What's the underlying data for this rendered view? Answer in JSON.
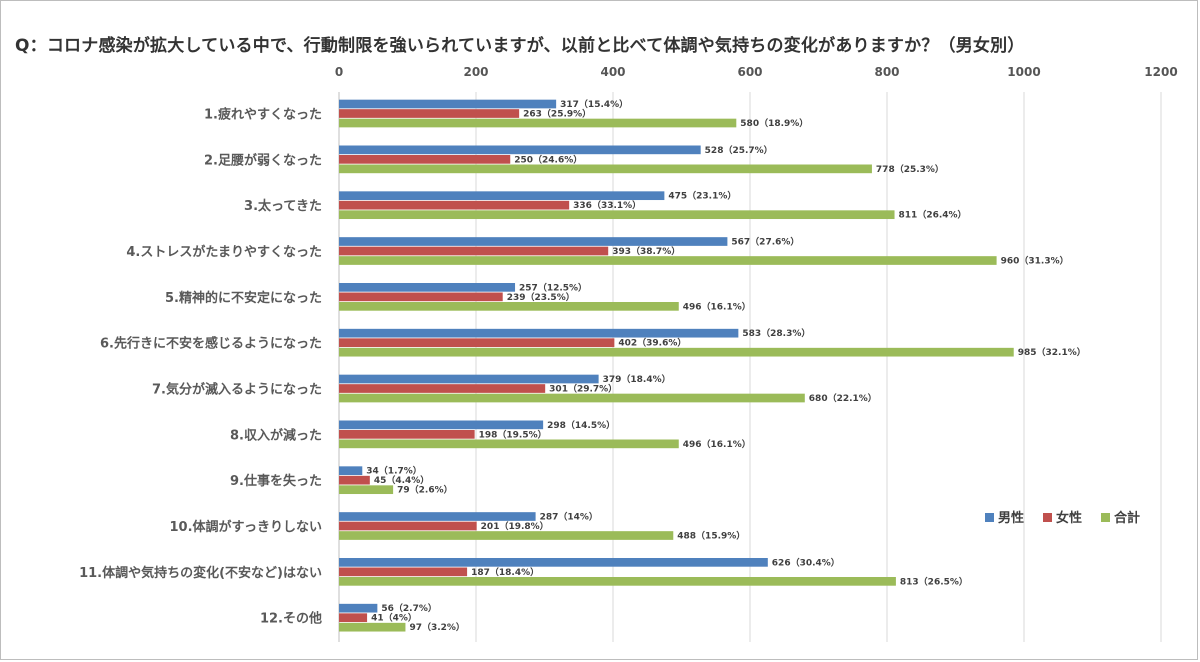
{
  "chart_data": {
    "type": "bar",
    "orientation": "horizontal",
    "title": "Q：コロナ感染が拡大している中で、行動制限を強いられていますが、以前と比べて体調や気持ちの変化がありますか？（男女別）",
    "xlim": [
      0,
      1200
    ],
    "x_ticks": [
      "0",
      "200",
      "400",
      "600",
      "800",
      "1000",
      "1200"
    ],
    "x_tick_values": [
      0,
      200,
      400,
      600,
      800,
      1000,
      1200
    ],
    "grid": true,
    "legend_position": "right",
    "categories": [
      "1.疲れやすくなった",
      "2.足腰が弱くなった",
      "3.太ってきた",
      "4.ストレスがたまりやすくなった",
      "5.精神的に不安定になった",
      "6.先行きに不安を感じるようになった",
      "7.気分が滅入るようになった",
      "8.収入が減った",
      "9.仕事を失った",
      "10.体調がすっきりしない",
      "11.体調や気持ちの変化(不安など)はない",
      "12.その他"
    ],
    "series": [
      {
        "name": "男性",
        "color": "#4f81bd",
        "values": [
          317,
          528,
          475,
          567,
          257,
          583,
          379,
          298,
          34,
          287,
          626,
          56
        ],
        "labels": [
          "317（15.4%）",
          "528（25.7%）",
          "475（23.1%）",
          "567（27.6%）",
          "257（12.5%）",
          "583（28.3%）",
          "379（18.4%）",
          "298（14.5%）",
          "34（1.7%）",
          "287（14%）",
          "626（30.4%）",
          "56（2.7%）"
        ]
      },
      {
        "name": "女性",
        "color": "#c0504d",
        "values": [
          263,
          250,
          336,
          393,
          239,
          402,
          301,
          198,
          45,
          201,
          187,
          41
        ],
        "labels": [
          "263（25.9%）",
          "250（24.6%）",
          "336（33.1%）",
          "393（38.7%）",
          "239（23.5%）",
          "402（39.6%）",
          "301（29.7%）",
          "198（19.5%）",
          "45（4.4%）",
          "201（19.8%）",
          "187（18.4%）",
          "41（4%）"
        ]
      },
      {
        "name": "合計",
        "color": "#9bbb59",
        "values": [
          580,
          778,
          811,
          960,
          496,
          985,
          680,
          496,
          79,
          488,
          813,
          97
        ],
        "labels": [
          "580（18.9%）",
          "778（25.3%）",
          "811（26.4%）",
          "960（31.3%）",
          "496（16.1%）",
          "985（32.1%）",
          "680（22.1%）",
          "496（16.1%）",
          "79（2.6%）",
          "488（15.9%）",
          "813（26.5%）",
          "97（3.2%）"
        ]
      }
    ]
  }
}
